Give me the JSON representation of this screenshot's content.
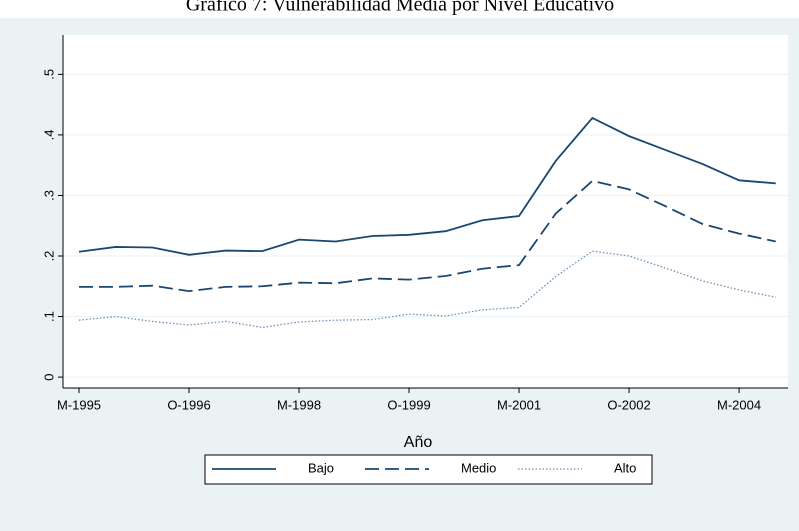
{
  "chart_data": {
    "type": "line",
    "title": "Gráfico 7: Vulnerabilidad Media por Nivel Educativo",
    "x_label": "Año",
    "categories": [
      "M-1995",
      null,
      null,
      "O-1996",
      null,
      null,
      "M-1998",
      null,
      null,
      "O-1999",
      null,
      null,
      "M-2001",
      null,
      null,
      "O-2002",
      null,
      null,
      "M-2004",
      null
    ],
    "series": [
      {
        "name": "Bajo",
        "color": "#1a476f",
        "dash": "solid",
        "values": [
          0.207,
          0.215,
          0.214,
          0.202,
          0.209,
          0.208,
          0.227,
          0.224,
          0.233,
          0.235,
          0.241,
          0.259,
          0.266,
          0.357,
          0.428,
          0.398,
          0.375,
          0.352,
          0.325,
          0.32
        ]
      },
      {
        "name": "Medio",
        "color": "#1a476f",
        "dash": "dash",
        "values": [
          0.149,
          0.149,
          0.151,
          0.142,
          0.149,
          0.15,
          0.156,
          0.155,
          0.163,
          0.161,
          0.167,
          0.179,
          0.185,
          0.27,
          0.324,
          0.31,
          0.282,
          0.253,
          0.237,
          0.224
        ]
      },
      {
        "name": "Alto",
        "color": "#6f8fb3",
        "dash": "dot",
        "values": [
          0.094,
          0.1,
          0.092,
          0.086,
          0.092,
          0.082,
          0.091,
          0.094,
          0.095,
          0.104,
          0.101,
          0.111,
          0.115,
          0.166,
          0.208,
          0.2,
          0.18,
          0.159,
          0.144,
          0.132
        ]
      }
    ],
    "ylim": [
      -0.018,
      0.565
    ],
    "yticks": [
      {
        "value": 0,
        "label": "0"
      },
      {
        "value": 0.1,
        "label": ".1"
      },
      {
        "value": 0.2,
        "label": ".2"
      },
      {
        "value": 0.3,
        "label": ".3"
      },
      {
        "value": 0.4,
        "label": ".4"
      },
      {
        "value": 0.5,
        "label": ".5"
      }
    ],
    "grid": true,
    "legend": "bottom"
  }
}
